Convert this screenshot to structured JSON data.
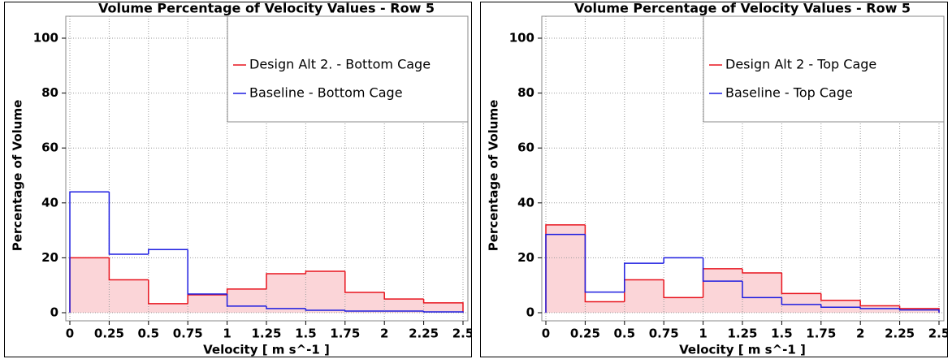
{
  "chart_data": [
    {
      "type": "histogram",
      "title": "Volume Percentage of Velocity Values - Row 5",
      "xlabel": "Velocity [ m s^-1 ]",
      "ylabel": "Percentage of Volume",
      "bins": [
        0,
        0.25,
        0.5,
        0.75,
        1,
        1.25,
        1.5,
        1.75,
        2,
        2.25,
        2.5
      ],
      "series": [
        {
          "name": "Design Alt 2. - Bottom Cage",
          "color": "#e8141e",
          "fill": "#fbd5d8",
          "values": [
            20,
            12,
            3.3,
            6.5,
            8.6,
            14.2,
            15.1,
            7.4,
            5,
            3.6
          ]
        },
        {
          "name": "Baseline - Bottom Cage",
          "color": "#1e1ee0",
          "values": [
            44,
            21.3,
            23,
            6.8,
            2.4,
            1.5,
            0.9,
            0.6,
            0.6,
            0.3
          ]
        }
      ],
      "xlim": [
        0,
        2.5
      ],
      "ylim": [
        0,
        100
      ],
      "xticks": [
        0,
        0.25,
        0.5,
        0.75,
        1,
        1.25,
        1.5,
        1.75,
        2,
        2.25,
        2.5
      ],
      "yticks": [
        0,
        20,
        40,
        60,
        80,
        100
      ],
      "grid": true,
      "legend": "upper right"
    },
    {
      "type": "histogram",
      "title": "Volume Percentage of Velocity Values - Row 5",
      "xlabel": "Velocity [ m s^-1 ]",
      "ylabel": "Percentage of Volume",
      "bins": [
        0,
        0.25,
        0.5,
        0.75,
        1,
        1.25,
        1.5,
        1.75,
        2,
        2.25,
        2.5
      ],
      "series": [
        {
          "name": "Design Alt 2 - Top Cage",
          "color": "#e8141e",
          "fill": "#fbd5d8",
          "values": [
            32,
            4,
            12,
            5.5,
            16,
            14.5,
            7,
            4.5,
            2.5,
            1.5
          ]
        },
        {
          "name": "Baseline - Top Cage",
          "color": "#1e1ee0",
          "values": [
            28.5,
            7.5,
            18,
            20,
            11.5,
            5.5,
            3,
            2,
            1.5,
            1
          ]
        }
      ],
      "xlim": [
        0,
        2.5
      ],
      "ylim": [
        0,
        100
      ],
      "xticks": [
        0,
        0.25,
        0.5,
        0.75,
        1,
        1.25,
        1.5,
        1.75,
        2,
        2.25,
        2.5
      ],
      "yticks": [
        0,
        20,
        40,
        60,
        80,
        100
      ],
      "grid": true,
      "legend": "upper right"
    }
  ]
}
